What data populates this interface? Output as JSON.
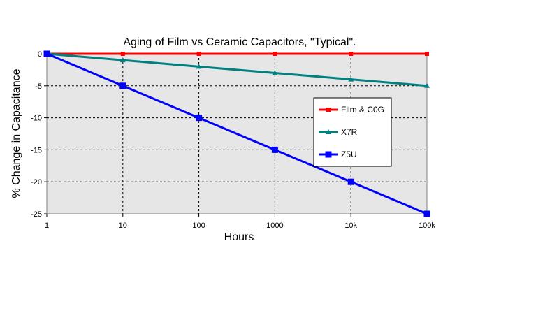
{
  "chart_data": {
    "type": "line",
    "title": "Aging of Film vs Ceramic Capacitors, \"Typical\".",
    "xlabel": "Hours",
    "ylabel": "% Change in Capacitance",
    "x_scale": "log",
    "x": [
      1,
      10,
      100,
      1000,
      10000,
      100000
    ],
    "x_tick_labels": [
      "1",
      "10",
      "100",
      "1000",
      "10k",
      "100k"
    ],
    "y_ticks": [
      0,
      -5,
      -10,
      -15,
      -20,
      -25
    ],
    "ylim": [
      -25,
      0
    ],
    "grid": "dashed",
    "legend_position": "right",
    "series": [
      {
        "name": "Film & C0G",
        "color": "#ff0000",
        "marker": "square-small",
        "values": [
          0,
          0,
          0,
          0,
          0,
          0
        ]
      },
      {
        "name": "X7R",
        "color": "#008080",
        "marker": "triangle",
        "values": [
          0,
          -1,
          -2,
          -3,
          -4,
          -5
        ]
      },
      {
        "name": "Z5U",
        "color": "#0000ff",
        "marker": "square",
        "values": [
          0,
          -5,
          -10,
          -15,
          -20,
          -25
        ]
      }
    ]
  }
}
